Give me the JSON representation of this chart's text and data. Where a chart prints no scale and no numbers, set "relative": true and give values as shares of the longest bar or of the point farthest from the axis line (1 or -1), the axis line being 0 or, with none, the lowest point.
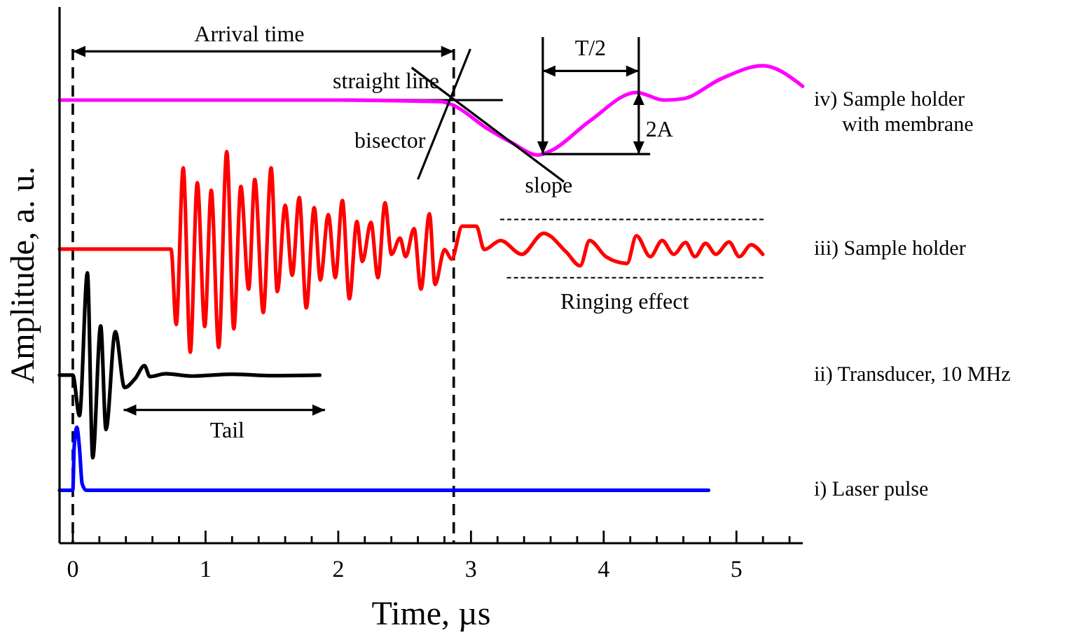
{
  "chart_data": {
    "type": "line",
    "relative": true,
    "xlabel": "Time, µs",
    "ylabel": "Amplitude, a. u.",
    "xlim": [
      -0.1,
      5.5
    ],
    "xticks": [
      0,
      {
        "value": 0.2,
        "label": null
      },
      {
        "value": 0.4,
        "label": null
      },
      {
        "value": 0.6,
        "label": null
      },
      {
        "value": 0.8,
        "label": null
      },
      1,
      {
        "value": 1.2,
        "label": null
      },
      {
        "value": 1.4,
        "label": null
      },
      {
        "value": 1.6,
        "label": null
      },
      {
        "value": 1.8,
        "label": null
      },
      2,
      {
        "value": 2.2,
        "label": null
      },
      {
        "value": 2.4,
        "label": null
      },
      {
        "value": 2.6,
        "label": null
      },
      {
        "value": 2.8,
        "label": null
      },
      3,
      {
        "value": 3.2,
        "label": null
      },
      {
        "value": 3.4,
        "label": null
      },
      {
        "value": 3.6,
        "label": null
      },
      {
        "value": 3.8,
        "label": null
      },
      4,
      {
        "value": 4.2,
        "label": null
      },
      {
        "value": 4.4,
        "label": null
      },
      {
        "value": 4.6,
        "label": null
      },
      {
        "value": 4.8,
        "label": null
      },
      5,
      {
        "value": 5.2,
        "label": null
      },
      {
        "value": 5.4,
        "label": null
      }
    ],
    "marker": "none",
    "line_style": "solid",
    "series": [
      {
        "name": "iv) Sample holder\nwith membrane",
        "color": "#ff00ff",
        "x": [
          -0.1,
          2.0,
          2.77,
          2.86,
          3.12,
          3.3,
          3.505,
          3.61,
          3.893,
          4.246,
          4.457,
          4.6,
          4.88,
          5.198,
          5.499
        ],
        "values": [
          0.928,
          0.928,
          0.925,
          0.918,
          0.869,
          0.84,
          0.813,
          0.823,
          0.884,
          0.944,
          0.928,
          0.931,
          0.972,
          1.0,
          0.957
        ]
      },
      {
        "name": "iii) Sample holder",
        "color": "#ff0000",
        "x": [
          -0.1,
          0.74,
          0.779,
          0.832,
          0.885,
          0.938,
          0.994,
          1.043,
          1.099,
          1.16,
          1.213,
          1.266,
          1.325,
          1.371,
          1.435,
          1.494,
          1.541,
          1.6,
          1.653,
          1.706,
          1.759,
          1.819,
          1.865,
          1.925,
          1.978,
          2.031,
          2.084,
          2.14,
          2.182,
          2.246,
          2.299,
          2.352,
          2.401,
          2.465,
          2.508,
          2.571,
          2.623,
          2.687,
          2.729,
          2.801,
          2.854,
          2.934,
          3.04,
          3.1,
          3.223,
          3.382,
          3.547,
          3.717,
          3.823,
          3.893,
          4.017,
          4.176,
          4.246,
          4.351,
          4.44,
          4.528,
          4.616,
          4.687,
          4.768,
          4.845,
          4.944,
          5.022,
          5.11,
          5.198
        ],
        "values": [
          0.616,
          0.616,
          0.458,
          0.786,
          0.4,
          0.755,
          0.454,
          0.739,
          0.41,
          0.82,
          0.449,
          0.747,
          0.532,
          0.762,
          0.483,
          0.786,
          0.527,
          0.708,
          0.561,
          0.724,
          0.493,
          0.703,
          0.551,
          0.688,
          0.556,
          0.718,
          0.512,
          0.674,
          0.59,
          0.672,
          0.556,
          0.713,
          0.605,
          0.639,
          0.6,
          0.659,
          0.532,
          0.69,
          0.542,
          0.615,
          0.595,
          0.664,
          0.664,
          0.615,
          0.634,
          0.605,
          0.649,
          0.61,
          0.581,
          0.634,
          0.6,
          0.586,
          0.644,
          0.6,
          0.634,
          0.605,
          0.63,
          0.6,
          0.628,
          0.605,
          0.631,
          0.6,
          0.625,
          0.605
        ]
      },
      {
        "name": "ii) Transducer, 10 MHz",
        "color": "#000000",
        "x": [
          -0.1,
          0.0,
          0.05,
          0.11,
          0.15,
          0.21,
          0.25,
          0.32,
          0.39,
          0.47,
          0.54,
          0.58,
          0.7,
          0.9,
          1.2,
          1.5,
          1.86
        ],
        "values": [
          0.352,
          0.352,
          0.267,
          0.566,
          0.179,
          0.455,
          0.238,
          0.443,
          0.326,
          0.345,
          0.372,
          0.349,
          0.355,
          0.35,
          0.354,
          0.351,
          0.352
        ]
      },
      {
        "name": "i) Laser pulse",
        "color": "#0000ff",
        "x": [
          -0.1,
          0.0,
          0.01,
          0.03,
          0.05,
          0.07,
          0.1,
          4.79
        ],
        "values": [
          0.111,
          0.111,
          0.2,
          0.243,
          0.2,
          0.125,
          0.111,
          0.111
        ]
      }
    ],
    "ref_lines": [
      {
        "axis": "x",
        "value": 0,
        "color": "#000000",
        "line_style": "dashed"
      },
      {
        "axis": "x",
        "value": 2.87,
        "color": "#000000",
        "line_style": "dashed"
      },
      {
        "axis": "y",
        "value": 0.928,
        "label": "straight line",
        "color": "#000000",
        "line_style": "solid"
      }
    ],
    "annotations": [
      "Arrival time",
      "bisector",
      "slope",
      "T/2",
      "2A",
      "Ringing effect",
      "Tail"
    ]
  }
}
